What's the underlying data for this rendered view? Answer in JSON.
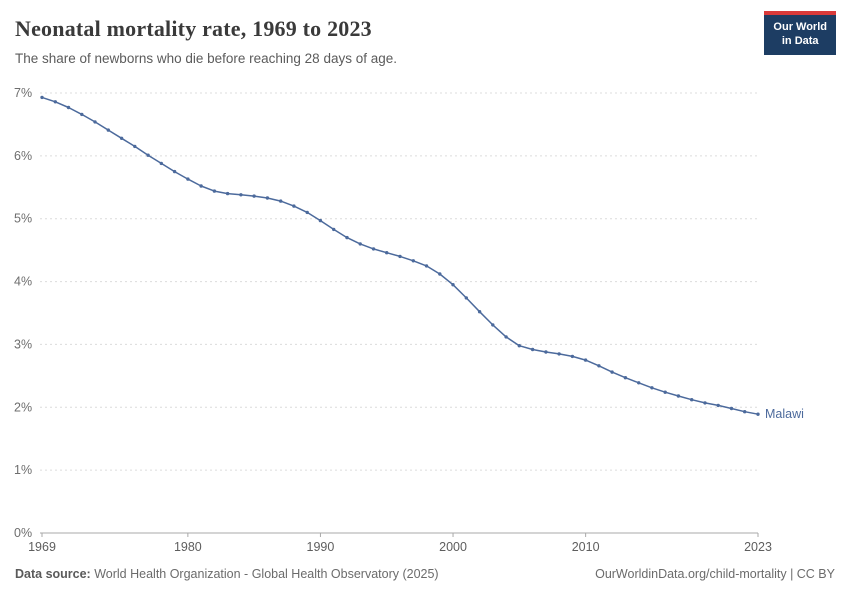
{
  "header": {
    "title": "Neonatal mortality rate, 1969 to 2023",
    "subtitle": "The share of newborns who die before reaching 28 days of age.",
    "logo_line1": "Our World",
    "logo_line2": "in Data"
  },
  "chart_data": {
    "type": "line",
    "title": "Neonatal mortality rate, 1969 to 2023",
    "xlabel": "",
    "ylabel": "",
    "xlim": [
      1969,
      2023
    ],
    "ylim": [
      0,
      7
    ],
    "yticks": [
      "0%",
      "1%",
      "2%",
      "3%",
      "4%",
      "5%",
      "6%",
      "7%"
    ],
    "xticks": [
      1969,
      1980,
      1990,
      2000,
      2010,
      2023
    ],
    "grid": "horizontal-dashed",
    "legend_position": "line-end-label",
    "series": [
      {
        "name": "Malawi",
        "color": "#4C6A9C",
        "x": [
          1969,
          1970,
          1971,
          1972,
          1973,
          1974,
          1975,
          1976,
          1977,
          1978,
          1979,
          1980,
          1981,
          1982,
          1983,
          1984,
          1985,
          1986,
          1987,
          1988,
          1989,
          1990,
          1991,
          1992,
          1993,
          1994,
          1995,
          1996,
          1997,
          1998,
          1999,
          2000,
          2001,
          2002,
          2003,
          2004,
          2005,
          2006,
          2007,
          2008,
          2009,
          2010,
          2011,
          2012,
          2013,
          2014,
          2015,
          2016,
          2017,
          2018,
          2019,
          2020,
          2021,
          2022,
          2023
        ],
        "values": [
          6.93,
          6.86,
          6.77,
          6.66,
          6.54,
          6.41,
          6.28,
          6.15,
          6.01,
          5.88,
          5.75,
          5.63,
          5.52,
          5.44,
          5.4,
          5.38,
          5.36,
          5.33,
          5.28,
          5.2,
          5.1,
          4.97,
          4.83,
          4.7,
          4.6,
          4.52,
          4.46,
          4.4,
          4.33,
          4.25,
          4.12,
          3.95,
          3.74,
          3.52,
          3.31,
          3.12,
          2.98,
          2.92,
          2.88,
          2.85,
          2.81,
          2.75,
          2.66,
          2.56,
          2.47,
          2.39,
          2.31,
          2.24,
          2.18,
          2.12,
          2.07,
          2.03,
          1.98,
          1.93,
          1.89
        ]
      }
    ]
  },
  "footer": {
    "source_label": "Data source:",
    "source_text": "World Health Organization - Global Health Observatory (2025)",
    "right_text": "OurWorldinData.org/child-mortality | CC BY"
  }
}
